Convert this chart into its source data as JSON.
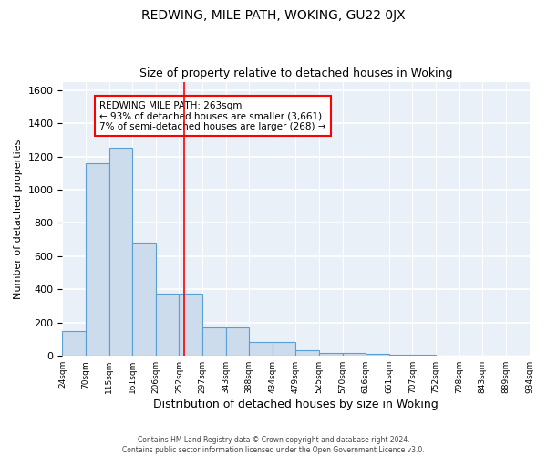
{
  "title": "REDWING, MILE PATH, WOKING, GU22 0JX",
  "subtitle": "Size of property relative to detached houses in Woking",
  "xlabel": "Distribution of detached houses by size in Woking",
  "ylabel": "Number of detached properties",
  "bar_color": "#ccdcec",
  "bar_edge_color": "#5a9fd4",
  "background_color": "#eaf0f8",
  "grid_color": "#ffffff",
  "bin_labels": [
    "24sqm",
    "70sqm",
    "115sqm",
    "161sqm",
    "206sqm",
    "252sqm",
    "297sqm",
    "343sqm",
    "388sqm",
    "434sqm",
    "479sqm",
    "525sqm",
    "570sqm",
    "616sqm",
    "661sqm",
    "707sqm",
    "752sqm",
    "798sqm",
    "843sqm",
    "889sqm",
    "934sqm"
  ],
  "bar_heights": [
    150,
    1160,
    1250,
    680,
    375,
    375,
    170,
    170,
    85,
    85,
    35,
    20,
    20,
    10,
    5,
    5,
    0,
    0,
    0,
    0
  ],
  "red_line_x": 5,
  "bin_edges": [
    0,
    1,
    2,
    3,
    4,
    5,
    6,
    7,
    8,
    9,
    10,
    11,
    12,
    13,
    14,
    15,
    16,
    17,
    18,
    19,
    20
  ],
  "red_line_bin": 5.2,
  "annotation_title": "REDWING MILE PATH: 263sqm",
  "annotation_line1": "← 93% of detached houses are smaller (3,661)",
  "annotation_line2": "7% of semi-detached houses are larger (268) →",
  "ylim": [
    0,
    1650
  ],
  "yticks": [
    0,
    200,
    400,
    600,
    800,
    1000,
    1200,
    1400,
    1600
  ],
  "footer1": "Contains HM Land Registry data © Crown copyright and database right 2024.",
  "footer2": "Contains public sector information licensed under the Open Government Licence v3.0."
}
